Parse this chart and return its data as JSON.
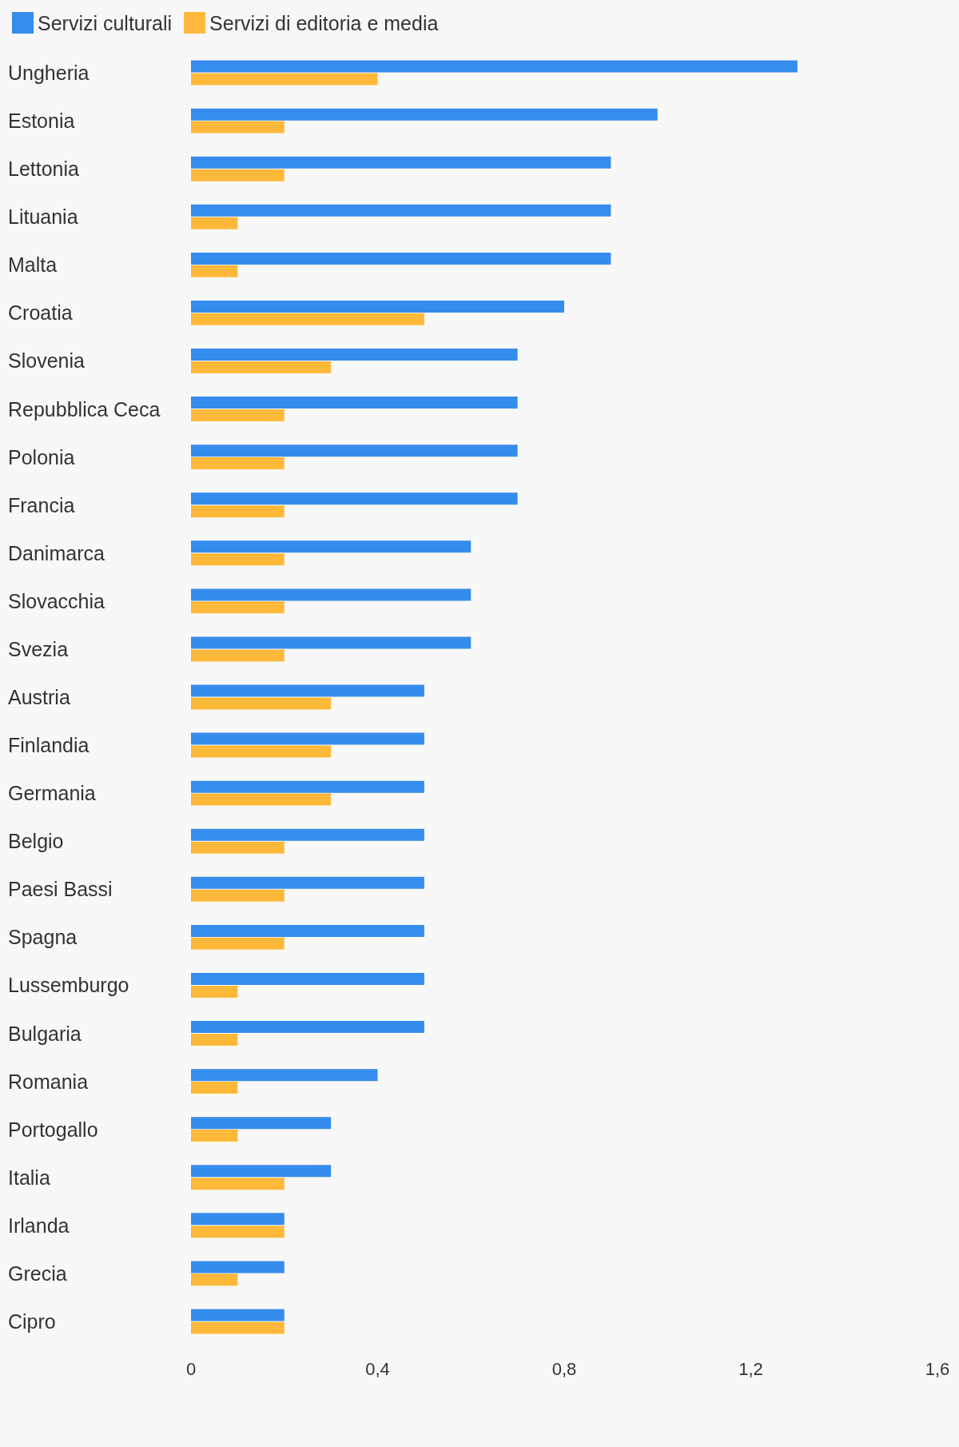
{
  "chart_data": {
    "type": "bar",
    "orientation": "horizontal",
    "legend": "top left",
    "grid": false,
    "categories": [
      "Ungheria",
      "Estonia",
      "Lettonia",
      "Lituania",
      "Malta",
      "Croatia",
      "Slovenia",
      "Repubblica Ceca",
      "Polonia",
      "Francia",
      "Danimarca",
      "Slovacchia",
      "Svezia",
      "Austria",
      "Finlandia",
      "Germania",
      "Belgio",
      "Paesi Bassi",
      "Spagna",
      "Lussemburgo",
      "Bulgaria",
      "Romania",
      "Portogallo",
      "Italia",
      "Irlanda",
      "Grecia",
      "Cipro"
    ],
    "series": [
      {
        "name": "Servizi culturali",
        "color": "#368ced",
        "values": [
          1.3,
          1.0,
          0.9,
          0.9,
          0.9,
          0.8,
          0.7,
          0.7,
          0.7,
          0.7,
          0.6,
          0.6,
          0.6,
          0.5,
          0.5,
          0.5,
          0.5,
          0.5,
          0.5,
          0.5,
          0.5,
          0.4,
          0.3,
          0.3,
          0.2,
          0.2,
          0.2
        ]
      },
      {
        "name": "Servizi di editoria e media",
        "color": "#ffb93a",
        "values": [
          0.4,
          0.2,
          0.2,
          0.1,
          0.1,
          0.5,
          0.3,
          0.2,
          0.2,
          0.2,
          0.2,
          0.2,
          0.2,
          0.3,
          0.3,
          0.3,
          0.2,
          0.2,
          0.2,
          0.1,
          0.1,
          0.1,
          0.1,
          0.2,
          0.2,
          0.1,
          0.2
        ]
      }
    ],
    "xlim": [
      0,
      1.6
    ],
    "xticks": [
      {
        "value": 0,
        "label": "0"
      },
      {
        "value": 0.4,
        "label": "0,4"
      },
      {
        "value": 0.8,
        "label": "0,8"
      },
      {
        "value": 1.2,
        "label": "1,2"
      },
      {
        "value": 1.6,
        "label": "1,6"
      }
    ]
  }
}
